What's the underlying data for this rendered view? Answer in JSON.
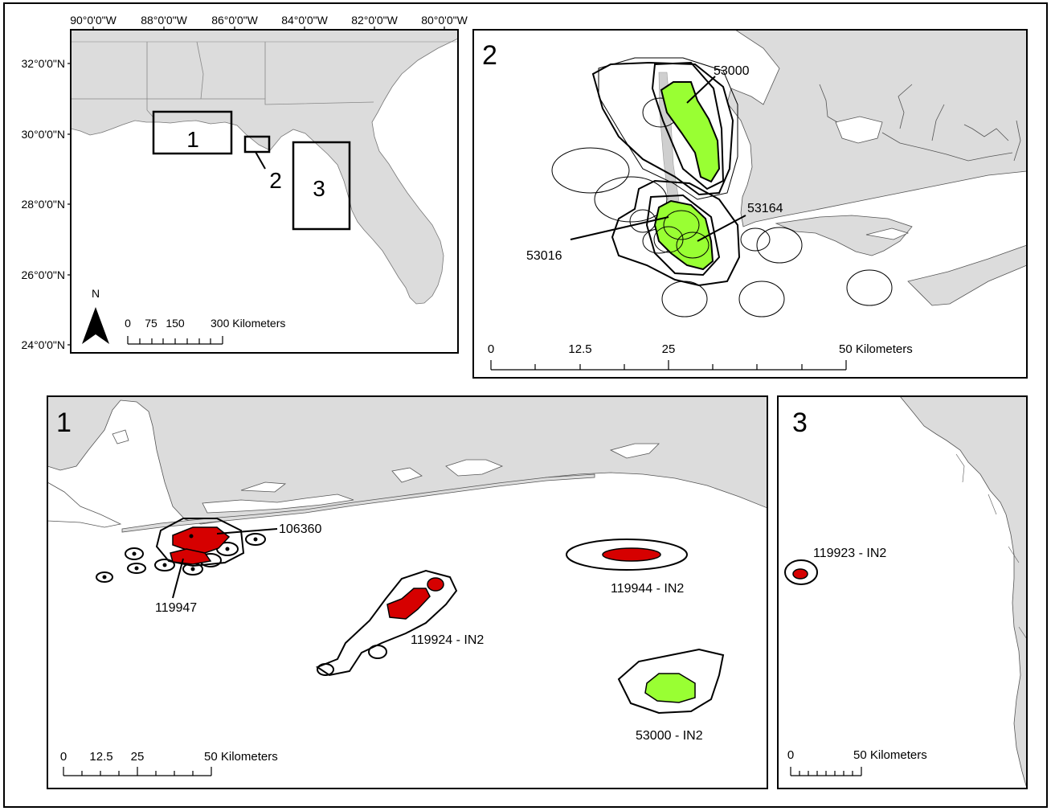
{
  "overview": {
    "lon_labels": [
      "90°0'0\"W",
      "88°0'0\"W",
      "86°0'0\"W",
      "84°0'0\"W",
      "82°0'0\"W",
      "80°0'0\"W"
    ],
    "lat_labels": [
      "32°0'0\"N",
      "30°0'0\"N",
      "28°0'0\"N",
      "26°0'0\"N",
      "24°0'0\"N"
    ],
    "box_labels": [
      "1",
      "2",
      "3"
    ],
    "north": "N",
    "scale_labels": [
      "0",
      "75",
      "150",
      "300 Kilometers"
    ]
  },
  "panel2": {
    "number": "2",
    "labels": [
      "53000",
      "53164",
      "53016"
    ],
    "scale_labels": [
      "0",
      "12.5",
      "25",
      "50 Kilometers"
    ]
  },
  "panel1": {
    "number": "1",
    "labels": [
      "106360",
      "119947",
      "119944 - IN2",
      "119924 - IN2",
      "53000 - IN2"
    ],
    "scale_labels": [
      "0",
      "12.5",
      "25",
      "50 Kilometers"
    ]
  },
  "panel3": {
    "number": "3",
    "labels": [
      "119923 - IN2"
    ],
    "scale_labels": [
      "0",
      "50 Kilometers"
    ]
  },
  "colors": {
    "land": "#e0e0e0",
    "water": "#ffffff",
    "core_red": "#d60000",
    "core_green": "#99ff33",
    "border": "#000000"
  }
}
